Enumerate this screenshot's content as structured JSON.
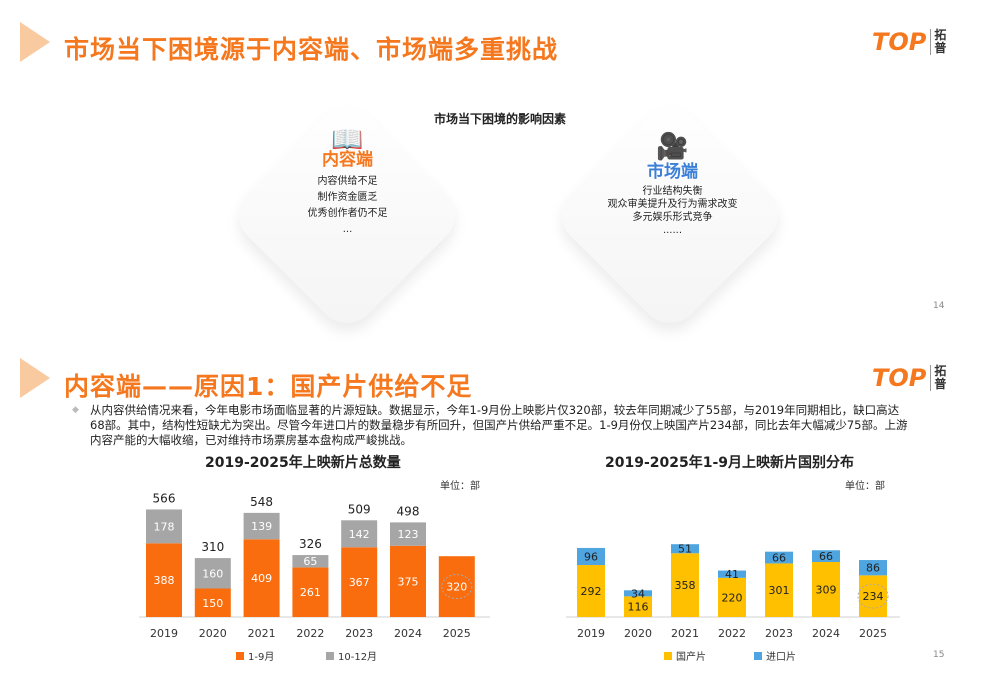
{
  "logo": {
    "text": "TOP",
    "cn": "拓普"
  },
  "slide1": {
    "title": "市场当下困境源于内容端、市场端多重挑战",
    "subtitle": "市场当下困境的影响因素",
    "cards": [
      {
        "heading": "内容端",
        "icon": "reading-person-icon",
        "color": "#f5781e",
        "lines": [
          "内容供给不足",
          "制作资金匮乏",
          "优秀创作者仍不足",
          "..."
        ]
      },
      {
        "heading": "市场端",
        "icon": "film-projector-icon",
        "color": "#3b7fd6",
        "lines": [
          "行业结构失衡",
          "观众审美提升及行为需求改变",
          "多元娱乐形式竞争",
          "......"
        ]
      }
    ],
    "page": "14"
  },
  "slide2": {
    "title": "内容端——原因1：国产片供给不足",
    "paragraph": "从内容供给情况来看，今年电影市场面临显著的片源短缺。数据显示，今年1-9月份上映影片仅320部，较去年同期减少了55部，与2019年同期相比，缺口高达68部。其中，结构性短缺尤为突出。尽管今年进口片的数量稳步有所回升，但国产片供给严重不足。1-9月份仅上映国产片234部，同比去年大幅减少75部。上游内容产能的大幅收缩，已对维持市场票房基本盘构成严峻挑战。",
    "page": "15"
  },
  "chart_data": [
    {
      "type": "bar",
      "stacked": true,
      "title": "2019-2025年上映新片总数量",
      "unit": "单位：部",
      "categories": [
        "2019",
        "2020",
        "2021",
        "2022",
        "2023",
        "2024",
        "2025"
      ],
      "series": [
        {
          "name": "1-9月",
          "color": "#f96d0f",
          "values": [
            388,
            150,
            409,
            261,
            367,
            375,
            320
          ]
        },
        {
          "name": "10-12月",
          "color": "#a6a6a6",
          "values": [
            178,
            160,
            139,
            65,
            142,
            123,
            null
          ]
        }
      ],
      "totals": [
        566,
        310,
        548,
        326,
        509,
        498,
        null
      ],
      "highlight": "2025",
      "legend": "bottom"
    },
    {
      "type": "bar",
      "stacked": true,
      "title": "2019-2025年1-9月上映新片国别分布",
      "unit": "单位：部",
      "categories": [
        "2019",
        "2020",
        "2021",
        "2022",
        "2023",
        "2024",
        "2025"
      ],
      "series": [
        {
          "name": "国产片",
          "color": "#ffc000",
          "values": [
            292,
            116,
            358,
            220,
            301,
            309,
            234
          ]
        },
        {
          "name": "进口片",
          "color": "#4ea5e0",
          "values": [
            96,
            34,
            51,
            41,
            66,
            66,
            86
          ]
        }
      ],
      "highlight": "2025",
      "legend": "bottom"
    }
  ]
}
